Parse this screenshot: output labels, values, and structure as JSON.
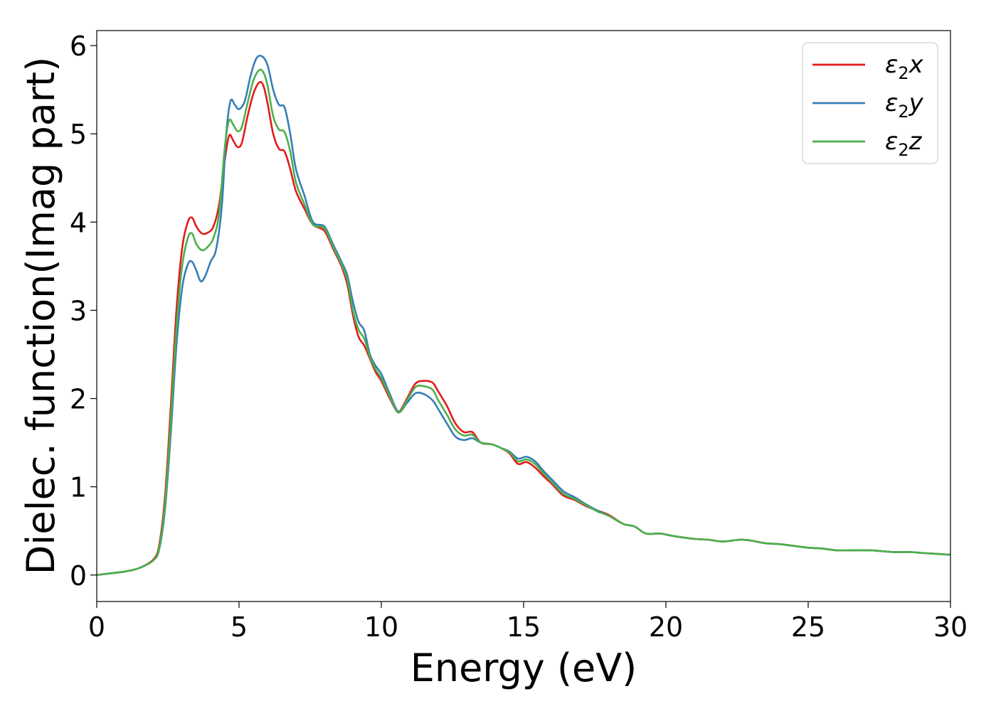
{
  "chart_data": {
    "type": "line",
    "xlabel": "Energy (eV)",
    "ylabel": "Dielec. function(Imag part)",
    "xlim": [
      0,
      30
    ],
    "ylim": [
      -0.3,
      6.17
    ],
    "xticks": [
      0,
      5,
      10,
      15,
      20,
      25,
      30
    ],
    "yticks": [
      0,
      1,
      2,
      3,
      4,
      5,
      6
    ],
    "xtick_labels": [
      "0",
      "5",
      "10",
      "15",
      "20",
      "25",
      "30"
    ],
    "ytick_labels": [
      "0",
      "1",
      "2",
      "3",
      "4",
      "5",
      "6"
    ],
    "grid": false,
    "legend_position": "top-right",
    "series": [
      {
        "name": "ε2x",
        "legend_main": "ε",
        "legend_sub": "2",
        "legend_var": "x",
        "color": "#e41a1c",
        "points": [
          [
            0,
            0
          ],
          [
            0.5,
            0.02
          ],
          [
            1,
            0.04
          ],
          [
            1.5,
            0.08
          ],
          [
            2,
            0.18
          ],
          [
            2.2,
            0.35
          ],
          [
            2.4,
            0.9
          ],
          [
            2.6,
            1.9
          ],
          [
            2.8,
            3.0
          ],
          [
            3.0,
            3.7
          ],
          [
            3.2,
            4.0
          ],
          [
            3.35,
            4.05
          ],
          [
            3.5,
            3.95
          ],
          [
            3.7,
            3.87
          ],
          [
            3.9,
            3.88
          ],
          [
            4.1,
            3.95
          ],
          [
            4.3,
            4.2
          ],
          [
            4.5,
            4.7
          ],
          [
            4.65,
            4.98
          ],
          [
            4.8,
            4.92
          ],
          [
            4.95,
            4.85
          ],
          [
            5.1,
            4.9
          ],
          [
            5.3,
            5.2
          ],
          [
            5.5,
            5.45
          ],
          [
            5.7,
            5.58
          ],
          [
            5.85,
            5.55
          ],
          [
            6.0,
            5.35
          ],
          [
            6.2,
            5.0
          ],
          [
            6.4,
            4.83
          ],
          [
            6.6,
            4.8
          ],
          [
            6.8,
            4.6
          ],
          [
            7.0,
            4.35
          ],
          [
            7.3,
            4.15
          ],
          [
            7.6,
            3.97
          ],
          [
            8.0,
            3.9
          ],
          [
            8.3,
            3.7
          ],
          [
            8.6,
            3.5
          ],
          [
            8.8,
            3.3
          ],
          [
            9.0,
            2.95
          ],
          [
            9.2,
            2.7
          ],
          [
            9.4,
            2.6
          ],
          [
            9.6,
            2.45
          ],
          [
            9.8,
            2.3
          ],
          [
            10.0,
            2.2
          ],
          [
            10.3,
            2.0
          ],
          [
            10.6,
            1.85
          ],
          [
            10.9,
            2.0
          ],
          [
            11.2,
            2.17
          ],
          [
            11.5,
            2.2
          ],
          [
            11.8,
            2.18
          ],
          [
            12.0,
            2.08
          ],
          [
            12.3,
            1.92
          ],
          [
            12.6,
            1.72
          ],
          [
            12.9,
            1.62
          ],
          [
            13.2,
            1.62
          ],
          [
            13.5,
            1.5
          ],
          [
            13.9,
            1.48
          ],
          [
            14.2,
            1.44
          ],
          [
            14.5,
            1.38
          ],
          [
            14.8,
            1.26
          ],
          [
            15.1,
            1.28
          ],
          [
            15.4,
            1.22
          ],
          [
            15.7,
            1.12
          ],
          [
            16.0,
            1.03
          ],
          [
            16.4,
            0.9
          ],
          [
            16.8,
            0.85
          ],
          [
            17.2,
            0.78
          ],
          [
            17.6,
            0.73
          ],
          [
            18.0,
            0.68
          ],
          [
            18.5,
            0.58
          ],
          [
            18.9,
            0.55
          ],
          [
            19.3,
            0.47
          ],
          [
            19.8,
            0.47
          ],
          [
            20.3,
            0.44
          ],
          [
            21,
            0.41
          ],
          [
            21.5,
            0.4
          ],
          [
            22,
            0.38
          ],
          [
            22.6,
            0.4
          ],
          [
            23,
            0.39
          ],
          [
            23.5,
            0.36
          ],
          [
            24,
            0.35
          ],
          [
            24.5,
            0.33
          ],
          [
            25,
            0.31
          ],
          [
            25.5,
            0.3
          ],
          [
            26,
            0.28
          ],
          [
            26.5,
            0.28
          ],
          [
            27.2,
            0.28
          ],
          [
            27.6,
            0.27
          ],
          [
            28,
            0.26
          ],
          [
            28.6,
            0.26
          ],
          [
            29,
            0.25
          ],
          [
            29.5,
            0.24
          ],
          [
            30,
            0.23
          ]
        ]
      },
      {
        "name": "ε2y",
        "legend_main": "ε",
        "legend_sub": "2",
        "legend_var": "y",
        "color": "#377eb8",
        "points": [
          [
            0,
            0
          ],
          [
            0.5,
            0.02
          ],
          [
            1,
            0.04
          ],
          [
            1.5,
            0.08
          ],
          [
            2,
            0.17
          ],
          [
            2.2,
            0.3
          ],
          [
            2.4,
            0.75
          ],
          [
            2.6,
            1.6
          ],
          [
            2.8,
            2.6
          ],
          [
            3.0,
            3.25
          ],
          [
            3.2,
            3.52
          ],
          [
            3.35,
            3.55
          ],
          [
            3.5,
            3.45
          ],
          [
            3.65,
            3.33
          ],
          [
            3.8,
            3.38
          ],
          [
            4.0,
            3.55
          ],
          [
            4.2,
            3.7
          ],
          [
            4.4,
            4.2
          ],
          [
            4.55,
            5.0
          ],
          [
            4.7,
            5.37
          ],
          [
            4.85,
            5.33
          ],
          [
            5.0,
            5.28
          ],
          [
            5.2,
            5.37
          ],
          [
            5.4,
            5.65
          ],
          [
            5.6,
            5.85
          ],
          [
            5.8,
            5.88
          ],
          [
            6.0,
            5.78
          ],
          [
            6.2,
            5.5
          ],
          [
            6.4,
            5.33
          ],
          [
            6.6,
            5.3
          ],
          [
            6.8,
            5.0
          ],
          [
            7.0,
            4.6
          ],
          [
            7.3,
            4.3
          ],
          [
            7.6,
            4.0
          ],
          [
            8.0,
            3.95
          ],
          [
            8.3,
            3.75
          ],
          [
            8.6,
            3.55
          ],
          [
            8.8,
            3.4
          ],
          [
            9.0,
            3.1
          ],
          [
            9.2,
            2.87
          ],
          [
            9.4,
            2.77
          ],
          [
            9.6,
            2.5
          ],
          [
            9.8,
            2.37
          ],
          [
            10.0,
            2.28
          ],
          [
            10.3,
            2.05
          ],
          [
            10.6,
            1.85
          ],
          [
            10.9,
            1.95
          ],
          [
            11.2,
            2.06
          ],
          [
            11.5,
            2.05
          ],
          [
            11.8,
            1.98
          ],
          [
            12.0,
            1.88
          ],
          [
            12.3,
            1.72
          ],
          [
            12.6,
            1.57
          ],
          [
            12.9,
            1.53
          ],
          [
            13.2,
            1.55
          ],
          [
            13.5,
            1.5
          ],
          [
            13.9,
            1.48
          ],
          [
            14.2,
            1.44
          ],
          [
            14.5,
            1.4
          ],
          [
            14.8,
            1.32
          ],
          [
            15.1,
            1.34
          ],
          [
            15.4,
            1.29
          ],
          [
            15.7,
            1.18
          ],
          [
            16.0,
            1.08
          ],
          [
            16.4,
            0.95
          ],
          [
            16.8,
            0.88
          ],
          [
            17.2,
            0.8
          ],
          [
            17.6,
            0.73
          ],
          [
            18.0,
            0.67
          ],
          [
            18.5,
            0.58
          ],
          [
            18.9,
            0.55
          ],
          [
            19.3,
            0.47
          ],
          [
            19.8,
            0.47
          ],
          [
            20.3,
            0.44
          ],
          [
            21,
            0.41
          ],
          [
            21.5,
            0.4
          ],
          [
            22,
            0.38
          ],
          [
            22.6,
            0.4
          ],
          [
            23,
            0.39
          ],
          [
            23.5,
            0.36
          ],
          [
            24,
            0.35
          ],
          [
            24.5,
            0.33
          ],
          [
            25,
            0.31
          ],
          [
            25.5,
            0.3
          ],
          [
            26,
            0.28
          ],
          [
            26.5,
            0.28
          ],
          [
            27.2,
            0.28
          ],
          [
            27.6,
            0.27
          ],
          [
            28,
            0.26
          ],
          [
            28.6,
            0.26
          ],
          [
            29,
            0.25
          ],
          [
            29.5,
            0.24
          ],
          [
            30,
            0.23
          ]
        ]
      },
      {
        "name": "ε2z",
        "legend_main": "ε",
        "legend_sub": "2",
        "legend_var": "z",
        "color": "#4daf4a",
        "points": [
          [
            0,
            0
          ],
          [
            0.5,
            0.02
          ],
          [
            1,
            0.04
          ],
          [
            1.5,
            0.08
          ],
          [
            2,
            0.17
          ],
          [
            2.2,
            0.32
          ],
          [
            2.4,
            0.82
          ],
          [
            2.6,
            1.75
          ],
          [
            2.8,
            2.8
          ],
          [
            3.0,
            3.5
          ],
          [
            3.2,
            3.82
          ],
          [
            3.35,
            3.87
          ],
          [
            3.5,
            3.75
          ],
          [
            3.7,
            3.68
          ],
          [
            3.9,
            3.72
          ],
          [
            4.1,
            3.82
          ],
          [
            4.3,
            4.1
          ],
          [
            4.5,
            4.85
          ],
          [
            4.65,
            5.15
          ],
          [
            4.8,
            5.1
          ],
          [
            4.95,
            5.03
          ],
          [
            5.1,
            5.08
          ],
          [
            5.3,
            5.35
          ],
          [
            5.5,
            5.6
          ],
          [
            5.7,
            5.72
          ],
          [
            5.85,
            5.7
          ],
          [
            6.0,
            5.55
          ],
          [
            6.2,
            5.2
          ],
          [
            6.4,
            5.05
          ],
          [
            6.6,
            5.02
          ],
          [
            6.8,
            4.8
          ],
          [
            7.0,
            4.45
          ],
          [
            7.3,
            4.2
          ],
          [
            7.6,
            3.97
          ],
          [
            8.0,
            3.93
          ],
          [
            8.3,
            3.72
          ],
          [
            8.6,
            3.52
          ],
          [
            8.8,
            3.35
          ],
          [
            9.0,
            3.0
          ],
          [
            9.2,
            2.78
          ],
          [
            9.4,
            2.68
          ],
          [
            9.6,
            2.47
          ],
          [
            9.8,
            2.33
          ],
          [
            10.0,
            2.23
          ],
          [
            10.3,
            2.02
          ],
          [
            10.6,
            1.84
          ],
          [
            10.9,
            1.98
          ],
          [
            11.2,
            2.13
          ],
          [
            11.5,
            2.14
          ],
          [
            11.8,
            2.1
          ],
          [
            12.0,
            1.98
          ],
          [
            12.3,
            1.82
          ],
          [
            12.6,
            1.65
          ],
          [
            12.9,
            1.58
          ],
          [
            13.2,
            1.59
          ],
          [
            13.5,
            1.5
          ],
          [
            13.9,
            1.48
          ],
          [
            14.2,
            1.44
          ],
          [
            14.5,
            1.39
          ],
          [
            14.8,
            1.29
          ],
          [
            15.1,
            1.31
          ],
          [
            15.4,
            1.26
          ],
          [
            15.7,
            1.15
          ],
          [
            16.0,
            1.05
          ],
          [
            16.4,
            0.92
          ],
          [
            16.8,
            0.86
          ],
          [
            17.2,
            0.79
          ],
          [
            17.6,
            0.72
          ],
          [
            18.0,
            0.67
          ],
          [
            18.5,
            0.58
          ],
          [
            18.9,
            0.55
          ],
          [
            19.3,
            0.47
          ],
          [
            19.8,
            0.47
          ],
          [
            20.3,
            0.44
          ],
          [
            21,
            0.41
          ],
          [
            21.5,
            0.4
          ],
          [
            22,
            0.38
          ],
          [
            22.6,
            0.4
          ],
          [
            23,
            0.39
          ],
          [
            23.5,
            0.36
          ],
          [
            24,
            0.35
          ],
          [
            24.5,
            0.33
          ],
          [
            25,
            0.31
          ],
          [
            25.5,
            0.3
          ],
          [
            26,
            0.28
          ],
          [
            26.5,
            0.28
          ],
          [
            27.2,
            0.28
          ],
          [
            27.6,
            0.27
          ],
          [
            28,
            0.26
          ],
          [
            28.6,
            0.26
          ],
          [
            29,
            0.25
          ],
          [
            29.5,
            0.24
          ],
          [
            30,
            0.23
          ]
        ]
      }
    ]
  }
}
